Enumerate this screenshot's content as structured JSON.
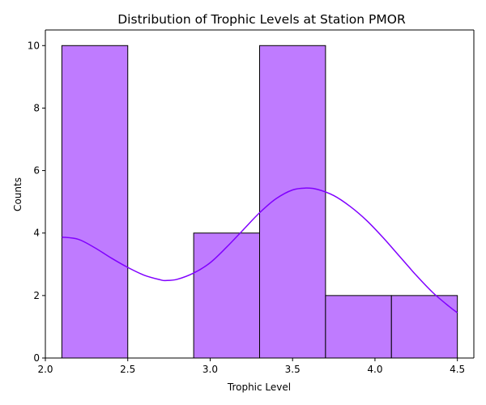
{
  "chart_data": {
    "type": "bar",
    "title": "Distribution of Trophic Levels at Station PMOR",
    "xlabel": "Trophic Level",
    "ylabel": "Counts",
    "xlim": [
      2.0,
      4.6
    ],
    "ylim": [
      0,
      10.5
    ],
    "xticks": [
      2.0,
      2.5,
      3.0,
      3.5,
      4.0,
      4.5
    ],
    "xtick_labels": [
      "2.0",
      "2.5",
      "3.0",
      "3.5",
      "4.0",
      "4.5"
    ],
    "yticks": [
      0,
      2,
      4,
      6,
      8,
      10
    ],
    "ytick_labels": [
      "0",
      "2",
      "4",
      "6",
      "8",
      "10"
    ],
    "bins": [
      {
        "x0": 2.1,
        "x1": 2.5,
        "count": 10
      },
      {
        "x0": 2.5,
        "x1": 2.9,
        "count": 0
      },
      {
        "x0": 2.9,
        "x1": 3.3,
        "count": 4
      },
      {
        "x0": 3.3,
        "x1": 3.7,
        "count": 10
      },
      {
        "x0": 3.7,
        "x1": 4.1,
        "count": 2
      },
      {
        "x0": 4.1,
        "x1": 4.5,
        "count": 2
      }
    ],
    "kde": {
      "x": [
        2.1,
        2.2,
        2.3,
        2.4,
        2.5,
        2.6,
        2.7,
        2.73,
        2.8,
        2.9,
        3.0,
        3.1,
        3.2,
        3.3,
        3.4,
        3.5,
        3.58,
        3.65,
        3.75,
        3.85,
        3.95,
        4.05,
        4.15,
        4.25,
        4.35,
        4.45,
        4.5
      ],
      "y": [
        3.87,
        3.8,
        3.53,
        3.2,
        2.9,
        2.65,
        2.5,
        2.48,
        2.52,
        2.72,
        3.05,
        3.55,
        4.1,
        4.65,
        5.1,
        5.38,
        5.44,
        5.4,
        5.2,
        4.85,
        4.4,
        3.85,
        3.25,
        2.65,
        2.1,
        1.65,
        1.45
      ]
    },
    "grid": false,
    "colors": {
      "bar_fill": "#bf7bff",
      "bar_edge": "#000000",
      "kde_line": "#8000ff"
    }
  }
}
